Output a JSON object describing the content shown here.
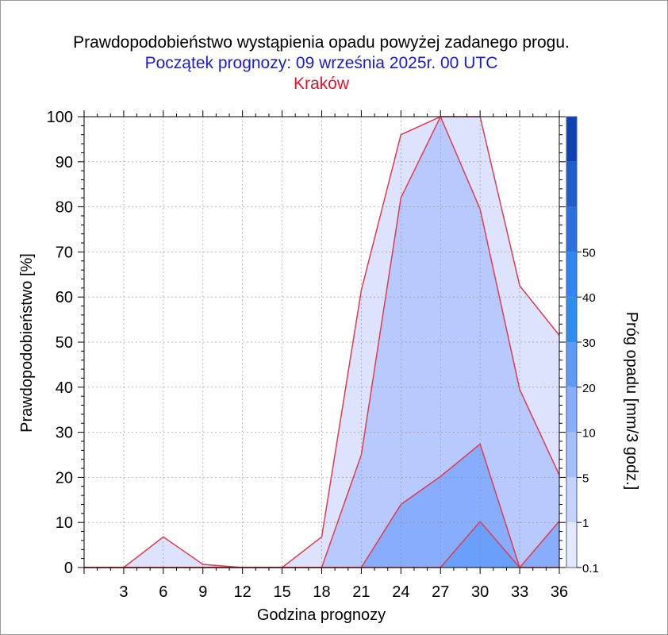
{
  "header": {
    "title": "Prawdopodobieństwo wystąpienia opadu powyżej zadanego progu.",
    "subtitle": "Początek prognozy: 09 września 2025r. 00 UTC",
    "location": "Kraków"
  },
  "colors": {
    "title": "#000000",
    "subtitle": "#1a1adc",
    "location": "#e8102a",
    "outline": "#e23a4e"
  },
  "chart_data": {
    "type": "area",
    "title": "Prawdopodobieństwo wystąpienia opadu powyżej zadanego progu.",
    "xlabel": "Godzina prognozy",
    "ylabel": "Prawdopodobieństwo [%]",
    "x": [
      0,
      3,
      6,
      9,
      12,
      15,
      18,
      21,
      24,
      27,
      30,
      33,
      36
    ],
    "xticks": [
      "3",
      "6",
      "9",
      "12",
      "15",
      "18",
      "21",
      "24",
      "27",
      "30",
      "33",
      "36"
    ],
    "xlim": [
      0,
      36
    ],
    "ylim": [
      0,
      100
    ],
    "yticks": [
      "0",
      "10",
      "20",
      "30",
      "40",
      "50",
      "60",
      "70",
      "80",
      "90",
      "100"
    ],
    "series": [
      {
        "name": "0.1",
        "color": "#dde3fc",
        "values": [
          0,
          0,
          6.8,
          0.7,
          0,
          0,
          6.8,
          61.5,
          96,
          100,
          100,
          62.5,
          51.5
        ]
      },
      {
        "name": "1",
        "color": "#b8cafd",
        "values": [
          0,
          0,
          0,
          0,
          0,
          0,
          0,
          25,
          82,
          100,
          79.5,
          39.5,
          20.5
        ]
      },
      {
        "name": "5",
        "color": "#87adfc",
        "values": [
          0,
          0,
          0,
          0,
          0,
          0,
          0,
          0,
          14,
          20.2,
          27.4,
          0,
          10.3
        ]
      },
      {
        "name": "10",
        "color": "#6aa0fb",
        "values": [
          0,
          0,
          0,
          0,
          0,
          0,
          0,
          0,
          0,
          0,
          10.2,
          0,
          0
        ]
      }
    ],
    "colorbar": {
      "label": "Próg opadu [mm/3 godz.]",
      "ticks": [
        "0.1",
        "1",
        "5",
        "10",
        "20",
        "30",
        "40",
        "50"
      ],
      "colors": [
        "#e4e9fd",
        "#c5d3fd",
        "#a5bffc",
        "#87adfc",
        "#5d9bf7",
        "#2d8ef0",
        "#2f86f5",
        "#2a70e0",
        "#1d5dcc",
        "#0d42b0"
      ]
    }
  }
}
